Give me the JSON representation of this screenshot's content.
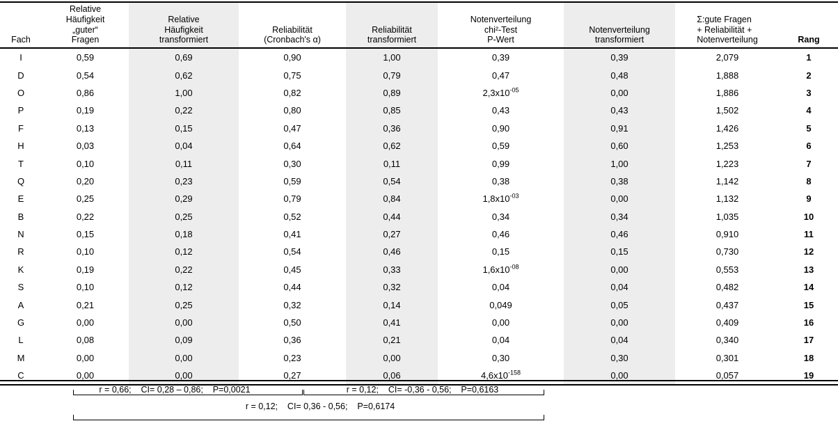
{
  "table": {
    "columns": [
      {
        "key": "fach",
        "label": "Fach"
      },
      {
        "key": "rel_h",
        "label": "Relative\nHäufigkeit\n„guter“\nFragen"
      },
      {
        "key": "rel_h_t",
        "label": "Relative\nHäufigkeit\ntransformiert",
        "shaded": true
      },
      {
        "key": "rel",
        "label": "Reliabilität\n(Cronbach's α)"
      },
      {
        "key": "rel_t",
        "label": "Reliabilität\ntransformiert",
        "shaded": true
      },
      {
        "key": "p",
        "label": "Notenverteilung\nchi²-Test\nP-Wert"
      },
      {
        "key": "noten_t",
        "label": "Notenverteilung\ntransformiert",
        "shaded": true
      },
      {
        "key": "sum",
        "label": "Σ:gute Fragen\n+ Reliabilität +\nNotenverteilung"
      },
      {
        "key": "rang",
        "label": "Rang"
      }
    ],
    "rows": [
      {
        "fach": "I",
        "rel_h": "0,59",
        "rel_h_t": "0,69",
        "rel": "0,90",
        "rel_t": "1,00",
        "p": "0,39",
        "p_sup": "",
        "noten_t": "0,39",
        "sum": "2,079",
        "rang": "1"
      },
      {
        "fach": "D",
        "rel_h": "0,54",
        "rel_h_t": "0,62",
        "rel": "0,75",
        "rel_t": "0,79",
        "p": "0,47",
        "p_sup": "",
        "noten_t": "0,48",
        "sum": "1,888",
        "rang": "2"
      },
      {
        "fach": "O",
        "rel_h": "0,86",
        "rel_h_t": "1,00",
        "rel": "0,82",
        "rel_t": "0,89",
        "p": "2,3x10",
        "p_sup": "-05",
        "noten_t": "0,00",
        "sum": "1,886",
        "rang": "3"
      },
      {
        "fach": "P",
        "rel_h": "0,19",
        "rel_h_t": "0,22",
        "rel": "0,80",
        "rel_t": "0,85",
        "p": "0,43",
        "p_sup": "",
        "noten_t": "0,43",
        "sum": "1,502",
        "rang": "4"
      },
      {
        "fach": "F",
        "rel_h": "0,13",
        "rel_h_t": "0,15",
        "rel": "0,47",
        "rel_t": "0,36",
        "p": "0,90",
        "p_sup": "",
        "noten_t": "0,91",
        "sum": "1,426",
        "rang": "5"
      },
      {
        "fach": "H",
        "rel_h": "0,03",
        "rel_h_t": "0,04",
        "rel": "0,64",
        "rel_t": "0,62",
        "p": "0,59",
        "p_sup": "",
        "noten_t": "0,60",
        "sum": "1,253",
        "rang": "6"
      },
      {
        "fach": "T",
        "rel_h": "0,10",
        "rel_h_t": "0,11",
        "rel": "0,30",
        "rel_t": "0,11",
        "p": "0,99",
        "p_sup": "",
        "noten_t": "1,00",
        "sum": "1,223",
        "rang": "7"
      },
      {
        "fach": "Q",
        "rel_h": "0,20",
        "rel_h_t": "0,23",
        "rel": "0,59",
        "rel_t": "0,54",
        "p": "0,38",
        "p_sup": "",
        "noten_t": "0,38",
        "sum": "1,142",
        "rang": "8"
      },
      {
        "fach": "E",
        "rel_h": "0,25",
        "rel_h_t": "0,29",
        "rel": "0,79",
        "rel_t": "0,84",
        "p": "1,8x10",
        "p_sup": "-03",
        "noten_t": "0,00",
        "sum": "1,132",
        "rang": "9"
      },
      {
        "fach": "B",
        "rel_h": "0,22",
        "rel_h_t": "0,25",
        "rel": "0,52",
        "rel_t": "0,44",
        "p": "0,34",
        "p_sup": "",
        "noten_t": "0,34",
        "sum": "1,035",
        "rang": "10"
      },
      {
        "fach": "N",
        "rel_h": "0,15",
        "rel_h_t": "0,18",
        "rel": "0,41",
        "rel_t": "0,27",
        "p": "0,46",
        "p_sup": "",
        "noten_t": "0,46",
        "sum": "0,910",
        "rang": "11"
      },
      {
        "fach": "R",
        "rel_h": "0,10",
        "rel_h_t": "0,12",
        "rel": "0,54",
        "rel_t": "0,46",
        "p": "0,15",
        "p_sup": "",
        "noten_t": "0,15",
        "sum": "0,730",
        "rang": "12"
      },
      {
        "fach": "K",
        "rel_h": "0,19",
        "rel_h_t": "0,22",
        "rel": "0,45",
        "rel_t": "0,33",
        "p": "1,6x10",
        "p_sup": "-08",
        "noten_t": "0,00",
        "sum": "0,553",
        "rang": "13"
      },
      {
        "fach": "S",
        "rel_h": "0,10",
        "rel_h_t": "0,12",
        "rel": "0,44",
        "rel_t": "0,32",
        "p": "0,04",
        "p_sup": "",
        "noten_t": "0,04",
        "sum": "0,482",
        "rang": "14"
      },
      {
        "fach": "A",
        "rel_h": "0,21",
        "rel_h_t": "0,25",
        "rel": "0,32",
        "rel_t": "0,14",
        "p": "0,049",
        "p_sup": "",
        "noten_t": "0,05",
        "sum": "0,437",
        "rang": "15"
      },
      {
        "fach": "G",
        "rel_h": "0,00",
        "rel_h_t": "0,00",
        "rel": "0,50",
        "rel_t": "0,41",
        "p": "0,00",
        "p_sup": "",
        "noten_t": "0,00",
        "sum": "0,409",
        "rang": "16"
      },
      {
        "fach": "L",
        "rel_h": "0,08",
        "rel_h_t": "0,09",
        "rel": "0,36",
        "rel_t": "0,21",
        "p": "0,04",
        "p_sup": "",
        "noten_t": "0,04",
        "sum": "0,340",
        "rang": "17"
      },
      {
        "fach": "M",
        "rel_h": "0,00",
        "rel_h_t": "0,00",
        "rel": "0,23",
        "rel_t": "0,00",
        "p": "0,30",
        "p_sup": "",
        "noten_t": "0,30",
        "sum": "0,301",
        "rang": "18"
      },
      {
        "fach": "C",
        "rel_h": "0,00",
        "rel_h_t": "0,00",
        "rel": "0,27",
        "rel_t": "0,06",
        "p": "4,6x10",
        "p_sup": "-158",
        "noten_t": "0,00",
        "sum": "0,057",
        "rang": "19"
      }
    ]
  },
  "footer": {
    "annotation_left": "r = 0,66;    CI= 0,28 – 0,86;    P=0,0021",
    "annotation_right": "r = 0,12;    CI= -0,36 - 0,56;    P=0,6163",
    "annotation_bottom": "r = 0,12;    CI= 0,36 - 0,56;    P=0,6174"
  },
  "colors": {
    "shaded_column": "#ededed",
    "rule": "#000000",
    "text": "#000000"
  }
}
